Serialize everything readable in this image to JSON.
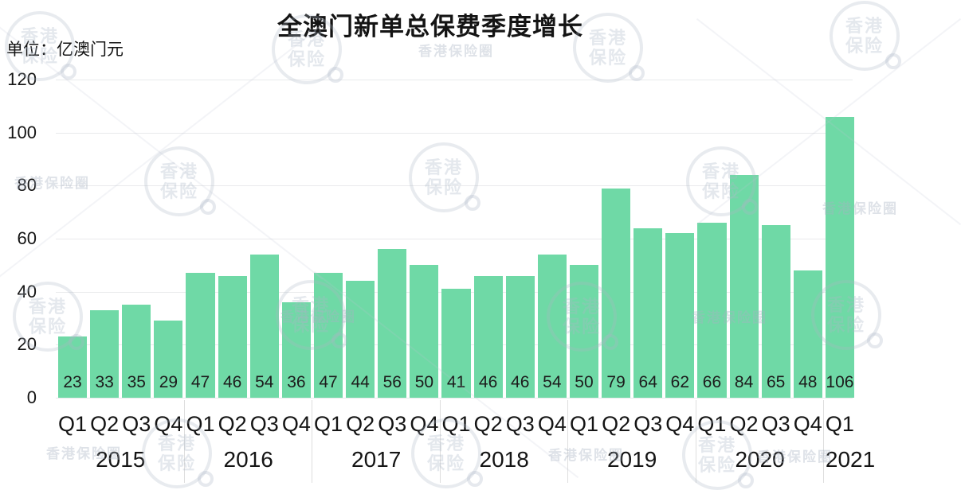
{
  "page": {
    "title": "全澳门新单总保费季度增长",
    "unit_label": "单位：亿澳门元"
  },
  "watermark": {
    "stamp_line1": "香港",
    "stamp_line2": "保险",
    "ring_text": "香港保险圈"
  },
  "colors": {
    "bar": "#6fd9a6",
    "grid": "#e9eaec",
    "separator": "#dedede",
    "text": "#141414",
    "value_text": "#1c1c1c"
  },
  "chart_data": {
    "type": "bar",
    "title": "全澳门新单总保费季度增长",
    "unit": "亿澳门元",
    "ylim": [
      0,
      120
    ],
    "yticks": [
      120,
      100,
      80,
      60,
      40,
      20,
      0
    ],
    "grid": true,
    "legend": false,
    "value_labels": "inside-bottom",
    "groups": [
      {
        "label": "2015",
        "quarters": [
          "Q1",
          "Q2",
          "Q3",
          "Q4"
        ],
        "values": [
          23,
          33,
          35,
          29
        ]
      },
      {
        "label": "2016",
        "quarters": [
          "Q1",
          "Q2",
          "Q3",
          "Q4"
        ],
        "values": [
          47,
          46,
          54,
          36
        ]
      },
      {
        "label": "2017",
        "quarters": [
          "Q1",
          "Q2",
          "Q3",
          "Q4"
        ],
        "values": [
          47,
          44,
          56,
          50
        ]
      },
      {
        "label": "2018",
        "quarters": [
          "Q1",
          "Q2",
          "Q3",
          "Q4"
        ],
        "values": [
          41,
          46,
          46,
          54
        ]
      },
      {
        "label": "2019",
        "quarters": [
          "Q1",
          "Q2",
          "Q3",
          "Q4"
        ],
        "values": [
          50,
          79,
          64,
          62
        ]
      },
      {
        "label": "2020",
        "quarters": [
          "Q1",
          "Q2",
          "Q3",
          "Q4"
        ],
        "values": [
          66,
          84,
          65,
          48
        ]
      },
      {
        "label": "2021",
        "quarters": [
          "Q1"
        ],
        "values": [
          106
        ]
      }
    ]
  }
}
